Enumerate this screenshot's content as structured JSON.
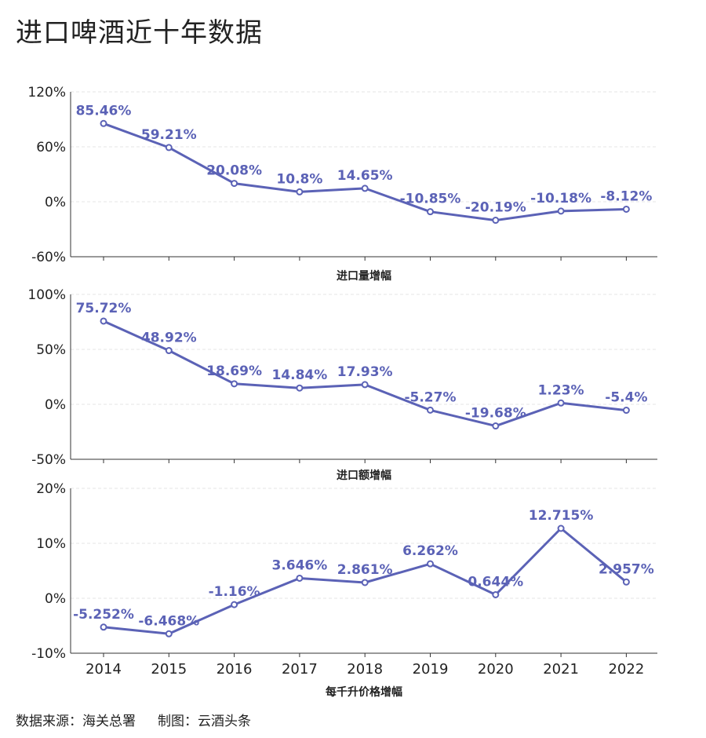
{
  "title": "进口啤酒近十年数据",
  "source": {
    "data_source": "数据来源：海关总署",
    "made_by": "制图：云酒头条"
  },
  "colors": {
    "series": "#5b62b6",
    "axis": "#333333",
    "grid": "#e6e6e6"
  },
  "chart_data": [
    {
      "type": "line",
      "caption": "进口量增幅",
      "x": [
        "2014",
        "2015",
        "2016",
        "2017",
        "2018",
        "2019",
        "2020",
        "2021",
        "2022"
      ],
      "values": [
        85.46,
        59.21,
        20.08,
        10.8,
        14.65,
        -10.85,
        -20.19,
        -10.18,
        -8.12
      ],
      "labels": [
        "85.46%",
        "59.21%",
        "20.08%",
        "10.8%",
        "14.65%",
        "-10.85%",
        "-20.19%",
        "-10.18%",
        "-8.12%"
      ],
      "ylim": [
        -60,
        120
      ],
      "yticks": [
        120,
        60,
        0,
        -60
      ],
      "ytick_labels": [
        "120%",
        "60%",
        "0%",
        "-60%"
      ],
      "grid": "horizontal dashed"
    },
    {
      "type": "line",
      "caption": "进口额增幅",
      "x": [
        "2014",
        "2015",
        "2016",
        "2017",
        "2018",
        "2019",
        "2020",
        "2021",
        "2022"
      ],
      "values": [
        75.72,
        48.92,
        18.69,
        14.84,
        17.93,
        -5.27,
        -19.68,
        1.23,
        -5.4
      ],
      "labels": [
        "75.72%",
        "48.92%",
        "18.69%",
        "14.84%",
        "17.93%",
        "-5.27%",
        "-19.68%",
        "1.23%",
        "-5.4%"
      ],
      "ylim": [
        -50,
        100
      ],
      "yticks": [
        100,
        50,
        0,
        -50
      ],
      "ytick_labels": [
        "100%",
        "50%",
        "0%",
        "-50%"
      ],
      "grid": "horizontal dashed"
    },
    {
      "type": "line",
      "caption": "每千升价格增幅",
      "x": [
        "2014",
        "2015",
        "2016",
        "2017",
        "2018",
        "2019",
        "2020",
        "2021",
        "2022"
      ],
      "values": [
        -5.252,
        -6.468,
        -1.16,
        3.646,
        2.861,
        6.262,
        0.644,
        12.715,
        2.957
      ],
      "labels": [
        "-5.252%",
        "-6.468%",
        "-1.16%",
        "3.646%",
        "2.861%",
        "6.262%",
        "0.644%",
        "12.715%",
        "2.957%"
      ],
      "ylim": [
        -10,
        20
      ],
      "yticks": [
        20,
        10,
        0,
        -10
      ],
      "ytick_labels": [
        "20%",
        "10%",
        "0%",
        "-10%"
      ],
      "grid": "horizontal dashed",
      "x_tick_labels_shown": true
    }
  ]
}
